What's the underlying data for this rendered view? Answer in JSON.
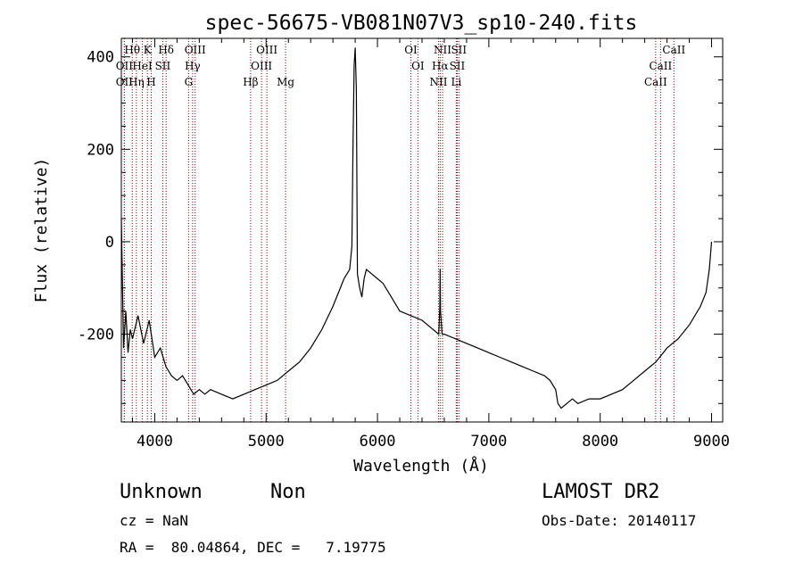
{
  "chart_data": {
    "type": "line",
    "title": "spec-56675-VB081N07V3_sp10-240.fits",
    "xlabel": "Wavelength (Å)",
    "ylabel": "Flux (relative)",
    "xlim": [
      3700,
      9100
    ],
    "ylim": [
      -390,
      440
    ],
    "x_ticks": [
      4000,
      5000,
      6000,
      7000,
      8000,
      9000
    ],
    "y_ticks": [
      -200,
      0,
      200,
      400
    ],
    "grid": false,
    "series": [
      {
        "x": [
          3700,
          3720,
          3740,
          3760,
          3780,
          3800,
          3850,
          3900,
          3950,
          4000,
          4050,
          4100,
          4150,
          4200,
          4250,
          4300,
          4350,
          4400,
          4450,
          4500,
          4600,
          4700,
          4800,
          4900,
          5000,
          5100,
          5200,
          5300,
          5400,
          5500,
          5600,
          5700,
          5750,
          5770,
          5780,
          5790,
          5800,
          5810,
          5820,
          5840,
          5860,
          5880,
          5900,
          5950,
          6000,
          6050,
          6100,
          6150,
          6200,
          6300,
          6400,
          6500,
          6550,
          6560,
          6563,
          6566,
          6580,
          6600,
          6700,
          6800,
          6900,
          7000,
          7100,
          7200,
          7300,
          7400,
          7500,
          7550,
          7600,
          7620,
          7650,
          7700,
          7750,
          7800,
          7900,
          8000,
          8100,
          8200,
          8300,
          8400,
          8500,
          8600,
          8700,
          8800,
          8900,
          8950,
          8980,
          9000
        ],
        "y": [
          50,
          -230,
          -150,
          -240,
          -190,
          -210,
          -160,
          -220,
          -170,
          -250,
          -230,
          -270,
          -290,
          -300,
          -290,
          -310,
          -330,
          -320,
          -330,
          -320,
          -330,
          -340,
          -330,
          -320,
          -310,
          -300,
          -280,
          -260,
          -230,
          -190,
          -140,
          -80,
          -60,
          -10,
          200,
          380,
          420,
          330,
          -70,
          -100,
          -120,
          -80,
          -60,
          -70,
          -80,
          -90,
          -110,
          -130,
          -150,
          -160,
          -170,
          -190,
          -200,
          -140,
          -60,
          -150,
          -200,
          -200,
          -210,
          -220,
          -230,
          -240,
          -250,
          -260,
          -270,
          -280,
          -290,
          -300,
          -320,
          -350,
          -360,
          -350,
          -340,
          -350,
          -340,
          -340,
          -330,
          -320,
          -300,
          -280,
          -260,
          -230,
          -210,
          -180,
          -140,
          -110,
          -60,
          0
        ]
      }
    ],
    "spectral_lines": [
      {
        "label": "Hθ",
        "row": 0,
        "x": 3798
      },
      {
        "label": "K",
        "row": 0,
        "x": 3934
      },
      {
        "label": "Hδ",
        "row": 0,
        "x": 4102
      },
      {
        "label": "OIII",
        "row": 0,
        "x": 4363
      },
      {
        "label": "OIII",
        "row": 0,
        "x": 5007
      },
      {
        "label": "OI",
        "row": 0,
        "x": 6300
      },
      {
        "label": "NII",
        "row": 0,
        "x": 6584
      },
      {
        "label": "SII",
        "row": 0,
        "x": 6731
      },
      {
        "label": "CaII",
        "row": 0,
        "x": 8662
      },
      {
        "label": "OII",
        "row": 1,
        "x": 3727
      },
      {
        "label": "HeI",
        "row": 1,
        "x": 3889
      },
      {
        "label": "SII",
        "row": 1,
        "x": 4072
      },
      {
        "label": "Hγ",
        "row": 1,
        "x": 4340
      },
      {
        "label": "OIII",
        "row": 1,
        "x": 4959
      },
      {
        "label": "OI",
        "row": 1,
        "x": 6363
      },
      {
        "label": "Hα",
        "row": 1,
        "x": 6563
      },
      {
        "label": "SII",
        "row": 1,
        "x": 6716
      },
      {
        "label": "CaII",
        "row": 1,
        "x": 8542
      },
      {
        "label": "OII",
        "row": 2,
        "x": 3727
      },
      {
        "label": "Hη",
        "row": 2,
        "x": 3835
      },
      {
        "label": "H",
        "row": 2,
        "x": 3968
      },
      {
        "label": "G",
        "row": 2,
        "x": 4304
      },
      {
        "label": "Hβ",
        "row": 2,
        "x": 4861
      },
      {
        "label": "Mg",
        "row": 2,
        "x": 5175
      },
      {
        "label": "NII",
        "row": 2,
        "x": 6548
      },
      {
        "label": "Li",
        "row": 2,
        "x": 6708
      },
      {
        "label": "CaII",
        "row": 2,
        "x": 8498
      }
    ],
    "line_color": "#8b0000"
  },
  "info": {
    "classification": "Unknown",
    "subclass": "Non",
    "survey": "LAMOST DR2",
    "cz": "cz = NaN",
    "obs_date": "Obs-Date: 20140117",
    "radec": "RA =  80.04864, DEC =   7.19775"
  }
}
